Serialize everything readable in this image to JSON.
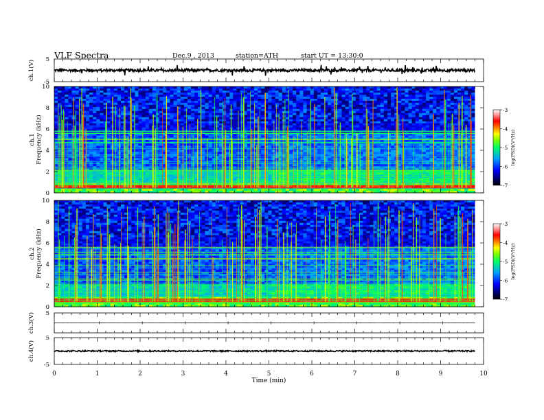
{
  "header": {
    "title": "VLF  Spectra",
    "date": "Dec.9 , 2013",
    "station": "station=ATH",
    "start": "start  UT  =   13:30:0"
  },
  "chart_data": [
    {
      "id": "ch1-waveform",
      "type": "line",
      "ylabel": "ch.1(V)",
      "ylim": [
        -5,
        5
      ],
      "yticks": [
        "5",
        "-5"
      ],
      "xlim": [
        0,
        10
      ],
      "baseline": 0,
      "noise_amplitude": 0.6,
      "spike_amplitude": 2.0,
      "data_end_min": 9.8
    },
    {
      "id": "ch1-spectrogram",
      "type": "heatmap",
      "ylabel": "ch.1\nFrequency  (kHz)",
      "ylim": [
        0,
        10
      ],
      "yticks": [
        "0",
        "2",
        "4",
        "6",
        "8",
        "10"
      ],
      "xlim": [
        0,
        10
      ],
      "data_end_min": 9.8,
      "colorbar": {
        "label": "log(PSD)(V²/Hz)",
        "range": [
          -7,
          -3
        ],
        "ticks": [
          "-3",
          "-4",
          "-5",
          "-6",
          "-7"
        ]
      }
    },
    {
      "id": "ch2-spectrogram",
      "type": "heatmap",
      "ylabel": "ch.2\nFrequency  (kHz)",
      "ylim": [
        0,
        10
      ],
      "yticks": [
        "0",
        "2",
        "4",
        "6",
        "8",
        "10"
      ],
      "xlim": [
        0,
        10
      ],
      "data_end_min": 9.8,
      "colorbar": {
        "label": "log(PSD)(V²/Hz)",
        "range": [
          -7,
          -3
        ],
        "ticks": [
          "-3",
          "-4",
          "-5",
          "-6",
          "-7"
        ]
      }
    },
    {
      "id": "ch3-waveform",
      "type": "line",
      "ylabel": "ch.3(V)",
      "ylim": [
        -5,
        5
      ],
      "yticks": [
        "5"
      ],
      "xlim": [
        0,
        10
      ],
      "baseline": 0,
      "noise_amplitude": 0.02,
      "data_end_min": 9.8
    },
    {
      "id": "ch4-waveform",
      "type": "line",
      "ylabel": "ch.4(V)",
      "ylim": [
        -5,
        5
      ],
      "yticks": [
        "5",
        "-5"
      ],
      "xlim": [
        0,
        10
      ],
      "baseline": 0,
      "noise_amplitude": 0.25,
      "data_end_min": 9.8
    }
  ],
  "xaxis": {
    "label": "Time  (min)",
    "ticks": [
      "0",
      "1",
      "2",
      "3",
      "4",
      "5",
      "6",
      "7",
      "8",
      "9",
      "10"
    ]
  }
}
